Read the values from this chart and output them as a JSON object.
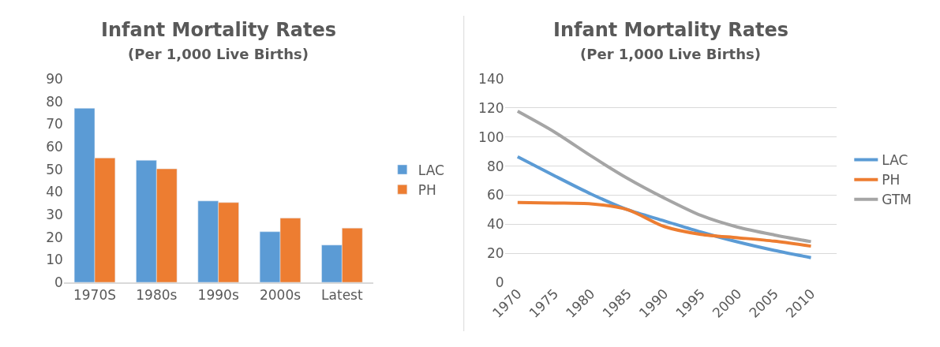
{
  "chart_data": [
    {
      "type": "bar",
      "title": "Infant Mortality Rates",
      "subtitle": "(Per 1,000 Live Births)",
      "categories": [
        "1970S",
        "1980s",
        "1990s",
        "2000s",
        "Latest"
      ],
      "series": [
        {
          "name": "LAC",
          "color": "#5b9bd5",
          "values": [
            77,
            54,
            36,
            22.4,
            16.5
          ]
        },
        {
          "name": "PH",
          "color": "#ed7d31",
          "values": [
            55,
            50.2,
            35.3,
            28.4,
            24
          ]
        }
      ],
      "ylim": [
        0,
        90
      ],
      "yticks": [
        0,
        10,
        20,
        30,
        40,
        50,
        60,
        70,
        80,
        90
      ],
      "grid": false,
      "legend": "right"
    },
    {
      "type": "line",
      "title": "Infant Mortality Rates",
      "subtitle": "(Per 1,000 Live Births)",
      "categories": [
        "1970",
        "1975",
        "1980",
        "1985",
        "1990",
        "1995",
        "2000",
        "2005",
        "2010"
      ],
      "series": [
        {
          "name": "LAC",
          "color": "#5b9bd5",
          "values": [
            86.4,
            73.4,
            60.8,
            50,
            42.3,
            34.6,
            27.8,
            22,
            17
          ]
        },
        {
          "name": "PH",
          "color": "#ed7d31",
          "values": [
            55,
            54.6,
            54,
            50,
            38.4,
            33,
            30.7,
            28.3,
            24.9
          ]
        },
        {
          "name": "GTM",
          "color": "#a5a5a5",
          "values": [
            117.7,
            103.5,
            87,
            71.5,
            58,
            46,
            38,
            32.6,
            28
          ]
        }
      ],
      "ylim": [
        0,
        140
      ],
      "yticks": [
        0,
        20,
        40,
        60,
        80,
        100,
        120,
        140
      ],
      "grid": "y",
      "legend": "right",
      "marker": "none",
      "line_style": "solid"
    }
  ]
}
